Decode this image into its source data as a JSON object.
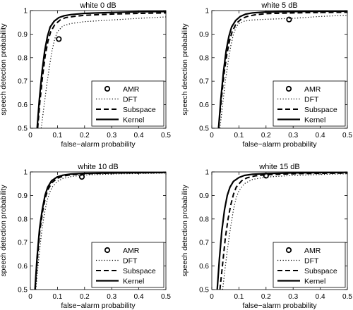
{
  "chart_data": [
    {
      "type": "line",
      "title": "white 0 dB",
      "xlabel": "false−alarm probability",
      "ylabel": "speech detection probability",
      "xlim": [
        0,
        0.5
      ],
      "ylim": [
        0.5,
        1
      ],
      "xticks": [
        "0",
        "0.1",
        "0.2",
        "0.3",
        "0.4",
        "0.5"
      ],
      "yticks": [
        "0.5",
        "0.6",
        "0.7",
        "0.8",
        "0.9",
        "1"
      ],
      "legend": [
        "AMR",
        "DFT",
        "Subspace",
        "Kernel"
      ],
      "legend_position": "bottom-right",
      "series": [
        {
          "name": "DFT",
          "style": "dotted",
          "x": [
            0.04,
            0.05,
            0.06,
            0.07,
            0.08,
            0.09,
            0.1,
            0.12,
            0.15,
            0.2,
            0.3,
            0.4,
            0.5
          ],
          "y": [
            0.5,
            0.59,
            0.68,
            0.76,
            0.83,
            0.88,
            0.91,
            0.935,
            0.945,
            0.953,
            0.96,
            0.967,
            0.973
          ]
        },
        {
          "name": "Subspace",
          "style": "dashed",
          "x": [
            0.027,
            0.035,
            0.045,
            0.055,
            0.065,
            0.075,
            0.09,
            0.11,
            0.13,
            0.16,
            0.2,
            0.3,
            0.4,
            0.5
          ],
          "y": [
            0.5,
            0.61,
            0.72,
            0.81,
            0.87,
            0.91,
            0.94,
            0.96,
            0.97,
            0.975,
            0.98,
            0.985,
            0.988,
            0.99
          ]
        },
        {
          "name": "Kernel",
          "style": "solid",
          "x": [
            0.025,
            0.033,
            0.043,
            0.053,
            0.063,
            0.073,
            0.088,
            0.105,
            0.125,
            0.15,
            0.2,
            0.3,
            0.4,
            0.5
          ],
          "y": [
            0.5,
            0.62,
            0.74,
            0.83,
            0.89,
            0.93,
            0.955,
            0.97,
            0.978,
            0.983,
            0.988,
            0.992,
            0.995,
            0.996
          ]
        },
        {
          "name": "AMR",
          "style": "marker",
          "x": [
            0.105
          ],
          "y": [
            0.879
          ]
        }
      ]
    },
    {
      "type": "line",
      "title": "white 5 dB",
      "xlabel": "false−alarm probability",
      "ylabel": "speech detection probability",
      "xlim": [
        0,
        0.5
      ],
      "ylim": [
        0.5,
        1
      ],
      "xticks": [
        "0",
        "0.1",
        "0.2",
        "0.3",
        "0.4",
        "0.5"
      ],
      "yticks": [
        "0.5",
        "0.6",
        "0.7",
        "0.8",
        "0.9",
        "1"
      ],
      "legend": [
        "AMR",
        "DFT",
        "Subspace",
        "Kernel"
      ],
      "legend_position": "bottom-right",
      "series": [
        {
          "name": "DFT",
          "style": "dotted",
          "x": [
            0.03,
            0.04,
            0.05,
            0.06,
            0.07,
            0.08,
            0.09,
            0.1,
            0.12,
            0.15,
            0.2,
            0.3,
            0.4,
            0.5
          ],
          "y": [
            0.5,
            0.6,
            0.7,
            0.78,
            0.85,
            0.9,
            0.93,
            0.945,
            0.955,
            0.96,
            0.963,
            0.967,
            0.975,
            0.98
          ]
        },
        {
          "name": "Subspace",
          "style": "dashed",
          "x": [
            0.025,
            0.035,
            0.045,
            0.055,
            0.065,
            0.075,
            0.09,
            0.11,
            0.13,
            0.16,
            0.2,
            0.3,
            0.4,
            0.5
          ],
          "y": [
            0.5,
            0.62,
            0.73,
            0.81,
            0.87,
            0.91,
            0.945,
            0.965,
            0.975,
            0.982,
            0.987,
            0.99,
            0.992,
            0.993
          ]
        },
        {
          "name": "Kernel",
          "style": "solid",
          "x": [
            0.025,
            0.033,
            0.043,
            0.053,
            0.063,
            0.073,
            0.088,
            0.105,
            0.125,
            0.15,
            0.2,
            0.3,
            0.4,
            0.5
          ],
          "y": [
            0.5,
            0.62,
            0.74,
            0.83,
            0.89,
            0.93,
            0.958,
            0.975,
            0.985,
            0.99,
            0.994,
            0.996,
            0.997,
            0.997
          ]
        },
        {
          "name": "AMR",
          "style": "marker",
          "x": [
            0.285
          ],
          "y": [
            0.962
          ]
        }
      ]
    },
    {
      "type": "line",
      "title": "white 10 dB",
      "xlabel": "false−alarm probability",
      "ylabel": "speech detection probability",
      "xlim": [
        0,
        0.5
      ],
      "ylim": [
        0.5,
        1
      ],
      "xticks": [
        "0",
        "0.1",
        "0.2",
        "0.3",
        "0.4",
        "0.5"
      ],
      "yticks": [
        "0.5",
        "0.6",
        "0.7",
        "0.8",
        "0.9",
        "1"
      ],
      "legend": [
        "AMR",
        "DFT",
        "Subspace",
        "Kernel"
      ],
      "legend_position": "bottom-right",
      "series": [
        {
          "name": "DFT",
          "style": "dotted",
          "x": [
            0.02,
            0.03,
            0.04,
            0.05,
            0.06,
            0.07,
            0.08,
            0.1,
            0.12,
            0.15,
            0.2,
            0.3,
            0.4,
            0.5
          ],
          "y": [
            0.5,
            0.62,
            0.73,
            0.81,
            0.87,
            0.91,
            0.935,
            0.96,
            0.972,
            0.98,
            0.987,
            0.991,
            0.993,
            0.995
          ]
        },
        {
          "name": "Subspace",
          "style": "dashed",
          "x": [
            0.018,
            0.026,
            0.035,
            0.045,
            0.055,
            0.065,
            0.08,
            0.1,
            0.12,
            0.15,
            0.2,
            0.3,
            0.4,
            0.5
          ],
          "y": [
            0.5,
            0.63,
            0.75,
            0.83,
            0.89,
            0.925,
            0.955,
            0.973,
            0.982,
            0.988,
            0.992,
            0.995,
            0.996,
            0.997
          ]
        },
        {
          "name": "Kernel",
          "style": "solid",
          "x": [
            0.017,
            0.025,
            0.034,
            0.044,
            0.054,
            0.064,
            0.078,
            0.098,
            0.12,
            0.15,
            0.2,
            0.3,
            0.4,
            0.5
          ],
          "y": [
            0.5,
            0.64,
            0.76,
            0.84,
            0.9,
            0.935,
            0.962,
            0.978,
            0.986,
            0.991,
            0.994,
            0.996,
            0.997,
            0.998
          ]
        },
        {
          "name": "AMR",
          "style": "marker",
          "x": [
            0.19
          ],
          "y": [
            0.979
          ]
        }
      ]
    },
    {
      "type": "line",
      "title": "white 15 dB",
      "xlabel": "false−alarm probability",
      "ylabel": "speech detection probability",
      "xlim": [
        0,
        0.5
      ],
      "ylim": [
        0.5,
        1
      ],
      "xticks": [
        "0",
        "0.1",
        "0.2",
        "0.3",
        "0.4",
        "0.5"
      ],
      "yticks": [
        "0.5",
        "0.6",
        "0.7",
        "0.8",
        "0.9",
        "1"
      ],
      "legend": [
        "AMR",
        "DFT",
        "Subspace",
        "Kernel"
      ],
      "legend_position": "bottom-right",
      "series": [
        {
          "name": "DFT",
          "style": "dotted",
          "x": [
            0.04,
            0.05,
            0.06,
            0.07,
            0.08,
            0.09,
            0.1,
            0.12,
            0.15,
            0.2,
            0.3,
            0.4,
            0.5
          ],
          "y": [
            0.5,
            0.6,
            0.69,
            0.77,
            0.84,
            0.89,
            0.92,
            0.95,
            0.968,
            0.978,
            0.985,
            0.989,
            0.992
          ]
        },
        {
          "name": "Subspace",
          "style": "dashed",
          "x": [
            0.03,
            0.04,
            0.05,
            0.06,
            0.07,
            0.08,
            0.09,
            0.11,
            0.13,
            0.16,
            0.2,
            0.3,
            0.4,
            0.5
          ],
          "y": [
            0.5,
            0.61,
            0.72,
            0.8,
            0.86,
            0.905,
            0.935,
            0.962,
            0.975,
            0.983,
            0.988,
            0.992,
            0.994,
            0.995
          ]
        },
        {
          "name": "Kernel",
          "style": "solid",
          "x": [
            0.02,
            0.028,
            0.037,
            0.047,
            0.057,
            0.067,
            0.08,
            0.1,
            0.12,
            0.15,
            0.2,
            0.3,
            0.4,
            0.5
          ],
          "y": [
            0.5,
            0.63,
            0.75,
            0.84,
            0.9,
            0.935,
            0.96,
            0.976,
            0.985,
            0.99,
            0.993,
            0.996,
            0.997,
            0.998
          ]
        },
        {
          "name": "AMR",
          "style": "marker",
          "x": [
            0.2
          ],
          "y": [
            0.984
          ]
        }
      ]
    }
  ]
}
